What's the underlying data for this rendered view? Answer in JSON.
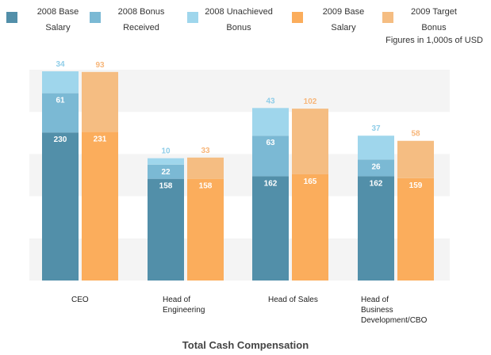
{
  "chart_data": {
    "type": "bar",
    "stacked": true,
    "grouped": true,
    "title": "Total Cash Compensation",
    "subtitle": "Figures in 1,000s of USD",
    "xlabel": "",
    "ylabel": "",
    "ylim": [
      0,
      325
    ],
    "grid": "alternating horizontal bands",
    "legend_position": "top",
    "categories": [
      "CEO",
      "Head of Engineering",
      "Head of Sales",
      "Head of Business Development/CBO"
    ],
    "category_labels": [
      [
        "CEO"
      ],
      [
        "Head of",
        "Engineering"
      ],
      [
        "Head of Sales"
      ],
      [
        "Head of",
        "Business",
        "Development/CBO"
      ]
    ],
    "legend": [
      {
        "lines": [
          "2008 Base",
          "Salary"
        ],
        "color": "#528fa9"
      },
      {
        "lines": [
          "2008 Bonus",
          "Received"
        ],
        "color": "#7bb9d4"
      },
      {
        "lines": [
          "2008 Unachieved",
          "Bonus"
        ],
        "color": "#9fd6ec"
      },
      {
        "lines": [
          "2009 Base",
          "Salary"
        ],
        "color": "#fbad5c"
      },
      {
        "lines": [
          "2009 Target",
          "Bonus"
        ],
        "color": "#f5bd82"
      }
    ],
    "stacks": [
      {
        "name": "2008",
        "series": [
          {
            "name": "2008 Base Salary",
            "color": "#528fa9",
            "label_color": "#ffffff",
            "values": [
              230,
              158,
              162,
              162
            ]
          },
          {
            "name": "2008 Bonus Received",
            "color": "#7bb9d4",
            "label_color": "#ffffff",
            "values": [
              61,
              22,
              63,
              26
            ]
          },
          {
            "name": "2008 Unachieved Bonus",
            "color": "#9fd6ec",
            "label_color": "#8fcde8",
            "label_position": "above",
            "values": [
              34,
              10,
              43,
              37
            ]
          }
        ]
      },
      {
        "name": "2009",
        "series": [
          {
            "name": "2009 Base Salary",
            "color": "#fbad5c",
            "label_color": "#ffffff",
            "values": [
              231,
              158,
              165,
              159
            ]
          },
          {
            "name": "2009 Target Bonus",
            "color": "#f5bd82",
            "label_color": "#f7b67a",
            "label_position": "above",
            "values": [
              93,
              33,
              102,
              58
            ]
          }
        ]
      }
    ]
  }
}
